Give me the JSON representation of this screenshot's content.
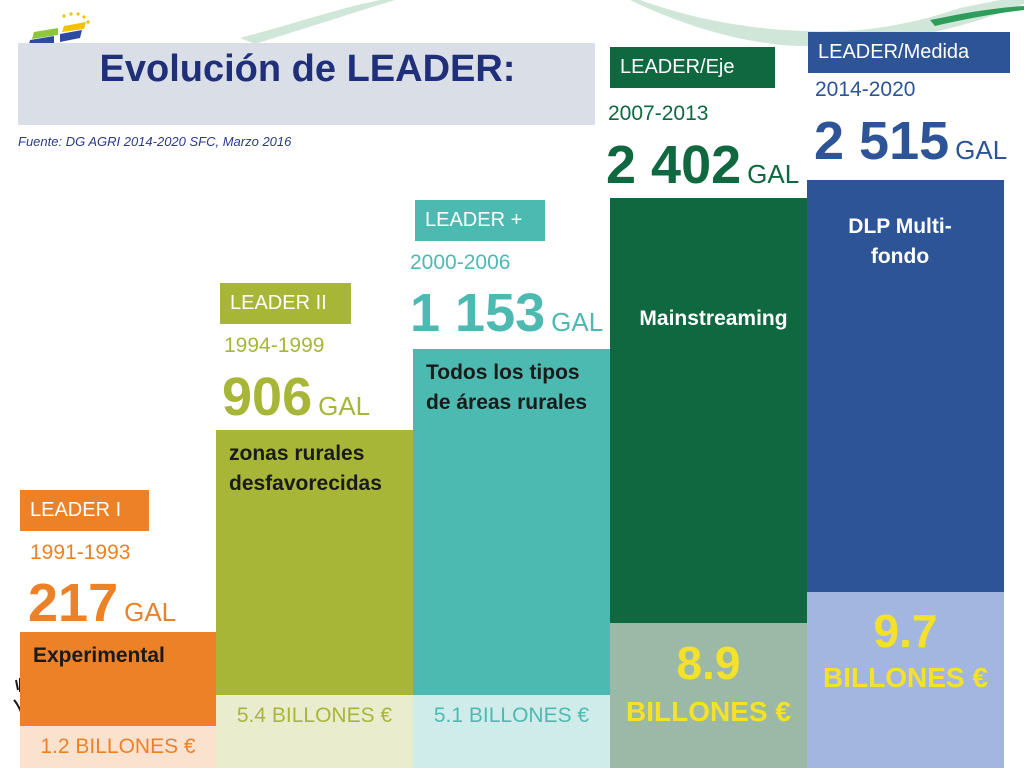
{
  "title": "Evolución de LEADER:",
  "source": "Fuente: DG AGRI 2014-2020 SFC, Marzo 2016",
  "chart_data": {
    "type": "bar",
    "categories": [
      "LEADER I",
      "LEADER II",
      "LEADER +",
      "LEADER/Eje",
      "LEADER/Medida"
    ],
    "periods": [
      "1991-1993",
      "1994-1999",
      "2000-2006",
      "2007-2013",
      "2014-2020"
    ],
    "gal_values": [
      217,
      906,
      1153,
      2402,
      2515
    ],
    "gal_labels": [
      "217",
      "906",
      "1 153",
      "2 402",
      "2 515"
    ],
    "gal_unit": "GAL",
    "bar_labels": [
      "Experimental",
      "zonas rurales desfavorecidas",
      "Todos los tipos de áreas rurales",
      "Mainstreaming",
      "DLP Multi-fondo"
    ],
    "budget_billions_eur": [
      1.2,
      5.4,
      5.1,
      8.9,
      9.7
    ],
    "budget_labels": [
      "1.2 BILLONES  €",
      "5.4 BILLONES €",
      "5.1 BILLONES €",
      "8.9",
      "9.7"
    ],
    "budget_unit": "BILLONES €",
    "colors": {
      "leader1": "#ec8127",
      "leader2": "#a8b638",
      "leaderplus": "#4dbab2",
      "eje": "#0f6840",
      "medida": "#2d5496",
      "title_text": "#1f2f7a",
      "budget_highlight": "#f4e22a"
    }
  }
}
